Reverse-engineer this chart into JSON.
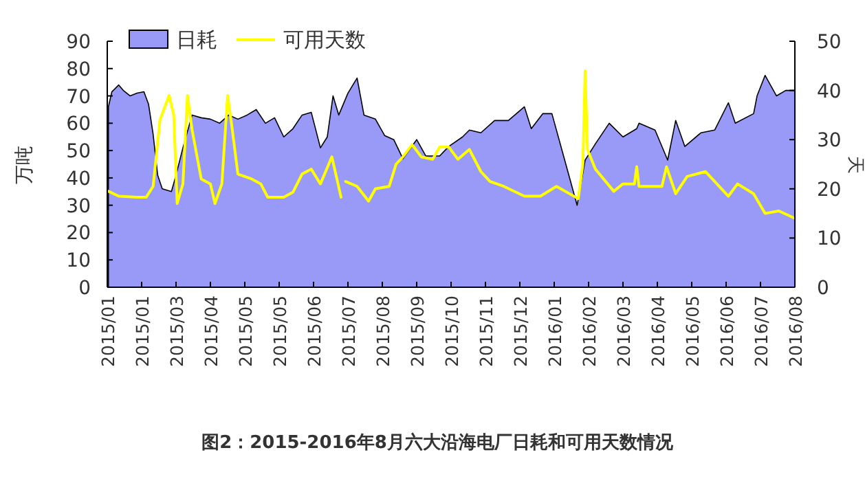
{
  "chart_data": {
    "type": "area",
    "title": "图2：2015-2016年8月六大沿海电厂日耗和可用天数情况",
    "ylabel": "万吨",
    "y2label": "天",
    "xlim": [
      "2015-01-01",
      "2016-08-23"
    ],
    "xticks": [
      {
        "value": "2015-01-01",
        "label": "2015/01"
      },
      {
        "value": "2015-01-31",
        "label": "2015/01"
      },
      {
        "value": "2015-03-02",
        "label": "2015/03"
      },
      {
        "value": "2015-04-01",
        "label": "2015/04"
      },
      {
        "value": "2015-05-01",
        "label": "2015/05"
      },
      {
        "value": "2015-05-31",
        "label": "2015/05"
      },
      {
        "value": "2015-06-30",
        "label": "2015/06"
      },
      {
        "value": "2015-07-30",
        "label": "2015/07"
      },
      {
        "value": "2015-08-29",
        "label": "2015/08"
      },
      {
        "value": "2015-09-28",
        "label": "2015/09"
      },
      {
        "value": "2015-10-28",
        "label": "2015/10"
      },
      {
        "value": "2015-11-27",
        "label": "2015/11"
      },
      {
        "value": "2015-12-27",
        "label": "2015/12"
      },
      {
        "value": "2016-01-26",
        "label": "2016/01"
      },
      {
        "value": "2016-02-25",
        "label": "2016/02"
      },
      {
        "value": "2016-03-26",
        "label": "2016/03"
      },
      {
        "value": "2016-04-25",
        "label": "2016/04"
      },
      {
        "value": "2016-05-25",
        "label": "2016/05"
      },
      {
        "value": "2016-06-24",
        "label": "2016/06"
      },
      {
        "value": "2016-07-24",
        "label": "2016/07"
      },
      {
        "value": "2016-08-23",
        "label": "2016/08"
      }
    ],
    "ylim": [
      0,
      90
    ],
    "yticks": [
      0,
      10,
      20,
      30,
      40,
      50,
      60,
      70,
      80,
      90
    ],
    "y2lim": [
      0,
      50
    ],
    "y2ticks": [
      0,
      10,
      20,
      30,
      40,
      50
    ],
    "grid": false,
    "legend": "top left",
    "series": [
      {
        "name": "日耗",
        "color": "#9999f8",
        "x": [
          "2015-01-02",
          "2015-01-05",
          "2015-01-11",
          "2015-01-15",
          "2015-01-21",
          "2015-01-27",
          "2015-02-02",
          "2015-02-06",
          "2015-02-10",
          "2015-02-14",
          "2015-02-18",
          "2015-02-26",
          "2015-03-02",
          "2015-03-08",
          "2015-03-16",
          "2015-03-24",
          "2015-04-01",
          "2015-04-09",
          "2015-04-17",
          "2015-04-25",
          "2015-05-03",
          "2015-05-11",
          "2015-05-19",
          "2015-05-27",
          "2015-06-04",
          "2015-06-12",
          "2015-06-20",
          "2015-06-28",
          "2015-07-06",
          "2015-07-12",
          "2015-07-17",
          "2015-07-22",
          "2015-07-30",
          "2015-08-07",
          "2015-08-13",
          "2015-08-23",
          "2015-08-31",
          "2015-09-08",
          "2015-09-16",
          "2015-09-28",
          "2015-10-06",
          "2015-10-18",
          "2015-10-26",
          "2015-11-07",
          "2015-11-13",
          "2015-11-23",
          "2015-12-05",
          "2015-12-17",
          "2015-12-31",
          "2016-01-06",
          "2016-01-16",
          "2016-01-24",
          "2016-02-15",
          "2016-02-22",
          "2016-03-02",
          "2016-03-14",
          "2016-03-26",
          "2016-04-07",
          "2016-04-09",
          "2016-04-23",
          "2016-05-04",
          "2016-05-11",
          "2016-05-19",
          "2016-06-02",
          "2016-06-14",
          "2016-06-26",
          "2016-07-02",
          "2016-07-18",
          "2016-07-21",
          "2016-07-28",
          "2016-08-07",
          "2016-08-15",
          "2016-08-23"
        ],
        "values": [
          66,
          71.5,
          74,
          72,
          70,
          71,
          71.5,
          67,
          56,
          41,
          36,
          35,
          41,
          51,
          63,
          62,
          61.5,
          60,
          63,
          61.5,
          63,
          65,
          60,
          62,
          55,
          58,
          63,
          64,
          51,
          55,
          70,
          63,
          71,
          76.5,
          63,
          61.5,
          55.5,
          54,
          47,
          54,
          48,
          48,
          51.5,
          55,
          57.5,
          56.5,
          61,
          61,
          66,
          58,
          63.5,
          63.5,
          30,
          46.5,
          52.5,
          60,
          55,
          58,
          60,
          57.5,
          46.5,
          61,
          51.5,
          56.5,
          57.5,
          67.5,
          60,
          63.5,
          70,
          77.5,
          70,
          72,
          72
        ]
      },
      {
        "name": "可用天数",
        "type": "line",
        "axis": "y2",
        "color": "#ffff00",
        "x": [
          "2015-01-02",
          "2015-01-11",
          "2015-01-27",
          "2015-02-04",
          "2015-02-10",
          "2015-02-16",
          "2015-02-24",
          "2015-02-28",
          "2015-03-03",
          "2015-03-08",
          "2015-03-12",
          "2015-03-16",
          "2015-03-24",
          "2015-04-01",
          "2015-04-05",
          "2015-04-11",
          "2015-04-16",
          "2015-04-19",
          "2015-04-25",
          "2015-05-07",
          "2015-05-15",
          "2015-05-21",
          "2015-06-04",
          "2015-06-12",
          "2015-06-20",
          "2015-06-28",
          "2015-07-06",
          "2015-07-16",
          "2015-07-24",
          "2015-07-26",
          "2015-07-28",
          "2015-08-07",
          "2015-08-17",
          "2015-08-23",
          "2015-09-04",
          "2015-09-10",
          "2015-09-16",
          "2015-09-24",
          "2015-10-02",
          "2015-10-12",
          "2015-10-18",
          "2015-10-26",
          "2015-11-03",
          "2015-11-13",
          "2015-11-23",
          "2015-12-01",
          "2015-12-13",
          "2015-12-31",
          "2016-01-14",
          "2016-01-28",
          "2016-02-16",
          "2016-02-20",
          "2016-02-22",
          "2016-02-24",
          "2016-03-02",
          "2016-03-18",
          "2016-03-26",
          "2016-04-05",
          "2016-04-07",
          "2016-04-09",
          "2016-04-29",
          "2016-05-03",
          "2016-05-11",
          "2016-05-21",
          "2016-06-06",
          "2016-06-26",
          "2016-07-04",
          "2016-07-18",
          "2016-07-28",
          "2016-08-09",
          "2016-08-23"
        ],
        "values": [
          19.5,
          18.5,
          18.3,
          18.3,
          20.5,
          34,
          39,
          35,
          17,
          21,
          39,
          32,
          22,
          21,
          17,
          21,
          39,
          34,
          23,
          22,
          21,
          18.3,
          18.3,
          19.3,
          23,
          24,
          21,
          26.5,
          18.3,
          null,
          21.5,
          20.5,
          17.5,
          20,
          20.5,
          25,
          26.5,
          29,
          26.5,
          26,
          28.5,
          28.5,
          26,
          28,
          23.5,
          21.5,
          20.5,
          18.5,
          18.5,
          20.5,
          18,
          25,
          44,
          28,
          24,
          19.5,
          21,
          21,
          24.5,
          20.5,
          20.5,
          24.5,
          19,
          22.5,
          23.5,
          18.5,
          21,
          19,
          15,
          15.5,
          14
        ]
      }
    ]
  }
}
